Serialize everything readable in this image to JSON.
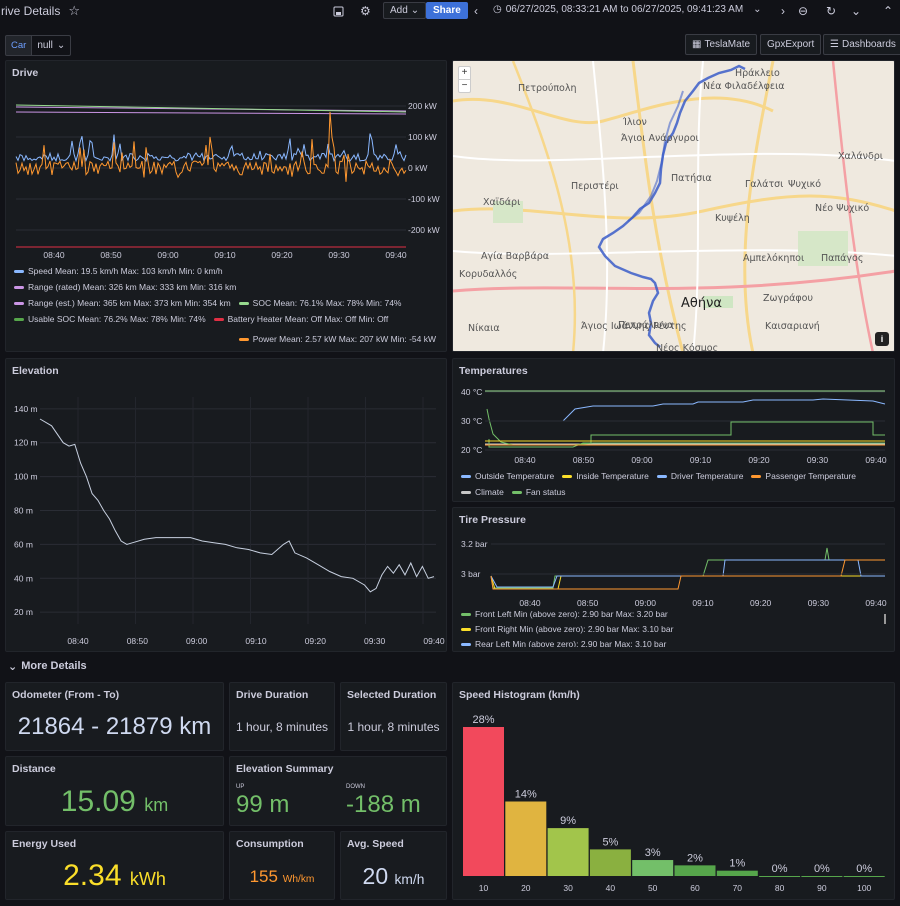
{
  "dashboard": {
    "title": "rive Details"
  },
  "toolbar": {
    "add_label": "Add",
    "share_label": "Share",
    "time_range": "06/27/2025, 08:33:21 AM to 06/27/2025, 09:41:23 AM"
  },
  "variables": {
    "car_label": "Car",
    "car_value": "null"
  },
  "links": {
    "teslamate": "TeslaMate",
    "gpxexport": "GpxExport",
    "dashboards": "Dashboards"
  },
  "panels": {
    "drive": "Drive",
    "elevation": "Elevation",
    "temperatures": "Temperatures",
    "tire_pressure": "Tire Pressure",
    "more_details": "More Details",
    "odometer": "Odometer (From - To)",
    "drive_duration": "Drive Duration",
    "selected_duration": "Selected Duration",
    "distance": "Distance",
    "elevation_summary": "Elevation Summary",
    "energy_used": "Energy Used",
    "consumption": "Consumption",
    "avg_speed": "Avg. Speed",
    "speed_histogram": "Speed Histogram (km/h)"
  },
  "stats": {
    "odometer": "21864 - 21879 km",
    "drive_duration": "1 hour, 8 minutes",
    "selected_duration": "1 hour, 8 minutes",
    "distance_value": "15.09",
    "distance_unit": "km",
    "elev_up_label": "UP",
    "elev_up_value": "99 m",
    "elev_down_label": "DOWN",
    "elev_down_value": "-188 m",
    "energy_value": "2.34",
    "energy_unit": "kWh",
    "consumption_value": "155",
    "consumption_unit": "Wh/km",
    "avg_speed_value": "20",
    "avg_speed_unit": "km/h"
  },
  "map": {
    "labels": [
      "Πετρούπολη",
      "Ηράκλειο",
      "Νέα Φιλαδέλφεια",
      "Ίλιον",
      "Άγιοι Ανάργυροι",
      "Χαλάνδρι",
      "Πατήσια",
      "Γαλάτσι",
      "Ψυχικό",
      "Περιστέρι",
      "Χαϊδάρι",
      "Κυψέλη",
      "Νέο Ψυχικό",
      "Αγία Βαρβάρα",
      "Αμπελόκηποι",
      "Κορυδαλλός",
      "Παπάγος",
      "Αθήνα",
      "Ζωγράφου",
      "Νίκαια",
      "Άγιος Ιωάννης Ρέντης",
      "Πετράλωνα",
      "Καισαριανή",
      "Νέος Κόσμος"
    ],
    "zoom_in": "+",
    "zoom_out": "−",
    "info": "i"
  },
  "chart_data": [
    {
      "type": "line",
      "title": "Drive",
      "x_ticks": [
        "08:40",
        "08:50",
        "09:00",
        "09:10",
        "09:20",
        "09:30",
        "09:40"
      ],
      "y_ticks": [
        "200 kW",
        "100 kW",
        "0 kW",
        "-100 kW",
        "-200 kW"
      ],
      "series": [
        {
          "name": "Speed",
          "color": "#8ab8ff",
          "mean": "19.5 km/h",
          "max": "103 km/h",
          "min": "0 km/h"
        },
        {
          "name": "Range (rated)",
          "color": "#ca95e5",
          "mean": "326 km",
          "max": "333 km",
          "min": "316 km"
        },
        {
          "name": "Range (est.)",
          "color": "#ca95e5",
          "mean": "365 km",
          "max": "373 km",
          "min": "354 km"
        },
        {
          "name": "SOC",
          "color": "#96d98d",
          "mean": "76.1%",
          "max": "78%",
          "min": "74%"
        },
        {
          "name": "Usable SOC",
          "color": "#56a64b",
          "mean": "76.2%",
          "max": "78%",
          "min": "74%"
        },
        {
          "name": "Battery Heater",
          "color": "#e02f44",
          "mean": "Off",
          "max": "Off",
          "min": "Off"
        },
        {
          "name": "Power",
          "color": "#ff9830",
          "mean": "2.57 kW",
          "max": "207 kW",
          "min": "-54 kW"
        }
      ]
    },
    {
      "type": "line",
      "title": "Elevation",
      "x_ticks": [
        "08:40",
        "08:50",
        "09:00",
        "09:10",
        "09:20",
        "09:30",
        "09:40"
      ],
      "y_ticks": [
        "140 m",
        "120 m",
        "100 m",
        "80 m",
        "60 m",
        "40 m",
        "20 m"
      ],
      "ylim": [
        13,
        147
      ],
      "points": [
        [
          0,
          134
        ],
        [
          2,
          130
        ],
        [
          4,
          120
        ],
        [
          5,
          118
        ],
        [
          6,
          119
        ],
        [
          7,
          108
        ],
        [
          8,
          100
        ],
        [
          9,
          90
        ],
        [
          10,
          86
        ],
        [
          11,
          80
        ],
        [
          12,
          75
        ],
        [
          13,
          68
        ],
        [
          14,
          62
        ],
        [
          15,
          60
        ],
        [
          16,
          61
        ],
        [
          18,
          63
        ],
        [
          20,
          64
        ],
        [
          24,
          64
        ],
        [
          26,
          64
        ],
        [
          28,
          62
        ],
        [
          30,
          61
        ],
        [
          32,
          60
        ],
        [
          34,
          58
        ],
        [
          36,
          57
        ],
        [
          38,
          55
        ],
        [
          40,
          54
        ],
        [
          42,
          60
        ],
        [
          43,
          62
        ],
        [
          44,
          55
        ],
        [
          46,
          52
        ],
        [
          48,
          48
        ],
        [
          50,
          44
        ],
        [
          52,
          41
        ],
        [
          54,
          40
        ],
        [
          56,
          36
        ],
        [
          57,
          32
        ],
        [
          58,
          34
        ],
        [
          59,
          42
        ],
        [
          60,
          47
        ],
        [
          61,
          43
        ],
        [
          62,
          48
        ],
        [
          63,
          42
        ],
        [
          64,
          49
        ],
        [
          65,
          41
        ],
        [
          66,
          47
        ],
        [
          67,
          40
        ],
        [
          68,
          41
        ]
      ]
    },
    {
      "type": "line",
      "title": "Temperatures",
      "x_ticks": [
        "08:40",
        "08:50",
        "09:00",
        "09:10",
        "09:20",
        "09:30",
        "09:40"
      ],
      "y_ticks": [
        "40 °C",
        "30 °C",
        "20 °C"
      ],
      "ylim": [
        20,
        40
      ],
      "series": [
        {
          "name": "Outside Temperature",
          "color": "#8ab8ff"
        },
        {
          "name": "Inside Temperature",
          "color": "#fade2a"
        },
        {
          "name": "Driver Temperature",
          "color": "#8ab8ff"
        },
        {
          "name": "Passenger Temperature",
          "color": "#ff9830"
        },
        {
          "name": "Climate",
          "color": "#c7c7c7"
        },
        {
          "name": "Fan status",
          "color": "#73bf69"
        }
      ]
    },
    {
      "type": "line",
      "title": "Tire Pressure",
      "x_ticks": [
        "08:40",
        "08:50",
        "09:00",
        "09:10",
        "09:20",
        "09:30",
        "09:40"
      ],
      "y_ticks": [
        "3.2 bar",
        "3 bar"
      ],
      "series": [
        {
          "name": "Front Left",
          "color": "#73bf69",
          "min_label": "Min (above zero): 2.90 bar",
          "max_label": "Max: 3.20 bar"
        },
        {
          "name": "Front Right",
          "color": "#fade2a",
          "min_label": "Min (above zero): 2.90 bar",
          "max_label": "Max: 3.10 bar"
        },
        {
          "name": "Rear Left",
          "color": "#8ab8ff",
          "min_label": "Min (above zero): 2.90 bar",
          "max_label": "Max: 3.10 bar"
        }
      ]
    },
    {
      "type": "bar",
      "title": "Speed Histogram (km/h)",
      "categories": [
        "10",
        "20",
        "30",
        "40",
        "50",
        "60",
        "70",
        "80",
        "90",
        "100"
      ],
      "values": [
        28,
        14,
        9,
        5,
        3,
        2,
        1,
        0,
        0,
        0
      ],
      "labels": [
        "28%",
        "14%",
        "9%",
        "5%",
        "3%",
        "2%",
        "1%",
        "0%",
        "0%",
        "0%"
      ],
      "colors": [
        "#f2495c",
        "#e0b440",
        "#a2c54b",
        "#8ab040",
        "#73bf69",
        "#56a64b",
        "#56a64b",
        "#56a64b",
        "#56a64b",
        "#56a64b"
      ]
    }
  ]
}
